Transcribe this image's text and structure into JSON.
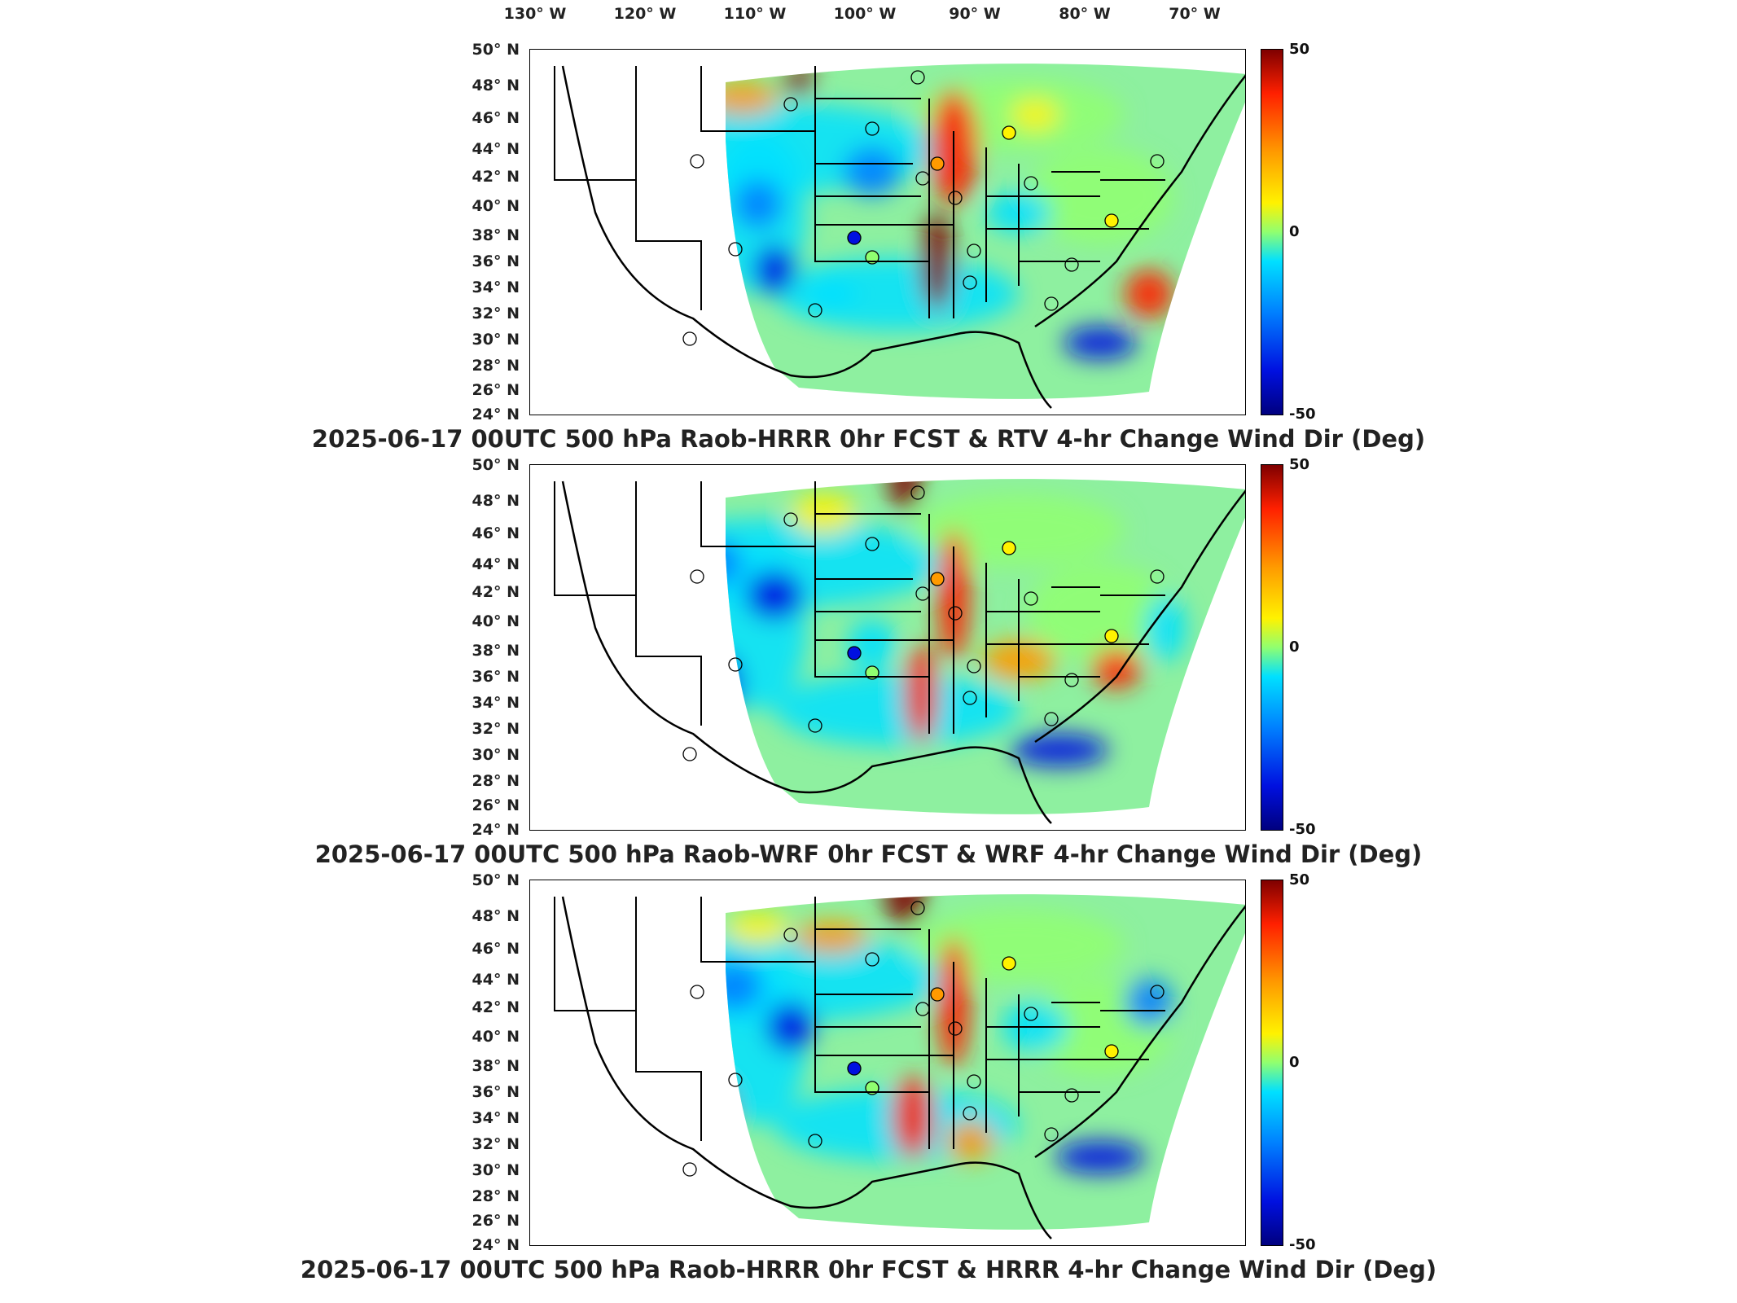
{
  "lon_labels": [
    "130° W",
    "120° W",
    "110° W",
    "100° W",
    "90° W",
    "80° W",
    "70° W"
  ],
  "lat_labels": [
    "50° N",
    "48° N",
    "46° N",
    "44° N",
    "42° N",
    "40° N",
    "38° N",
    "36° N",
    "34° N",
    "32° N",
    "30° N",
    "28° N",
    "26° N",
    "24° N"
  ],
  "colorbar": {
    "max": "50",
    "mid": "0",
    "min": "-50"
  },
  "colors": {
    "deep_red": "#7f0000",
    "red": "#ff2000",
    "orange": "#ff9a00",
    "yellow": "#fff200",
    "green": "#90ff70",
    "cyan": "#00e0ff",
    "blue": "#0080ff",
    "deep_blue": "#00007f"
  },
  "panels": [
    {
      "title": "2025-06-17 00UTC 500 hPa Raob-HRRR 0hr FCST & RTV 4-hr Change Wind Dir (Deg)"
    },
    {
      "title": "2025-06-17 00UTC 500 hPa Raob-WRF 0hr FCST & WRF 4-hr Change Wind Dir (Deg)"
    },
    {
      "title": "2025-06-17 00UTC 500 hPa Raob-HRRR 0hr FCST & HRRR 4-hr Change Wind Dir (Deg)"
    }
  ]
}
